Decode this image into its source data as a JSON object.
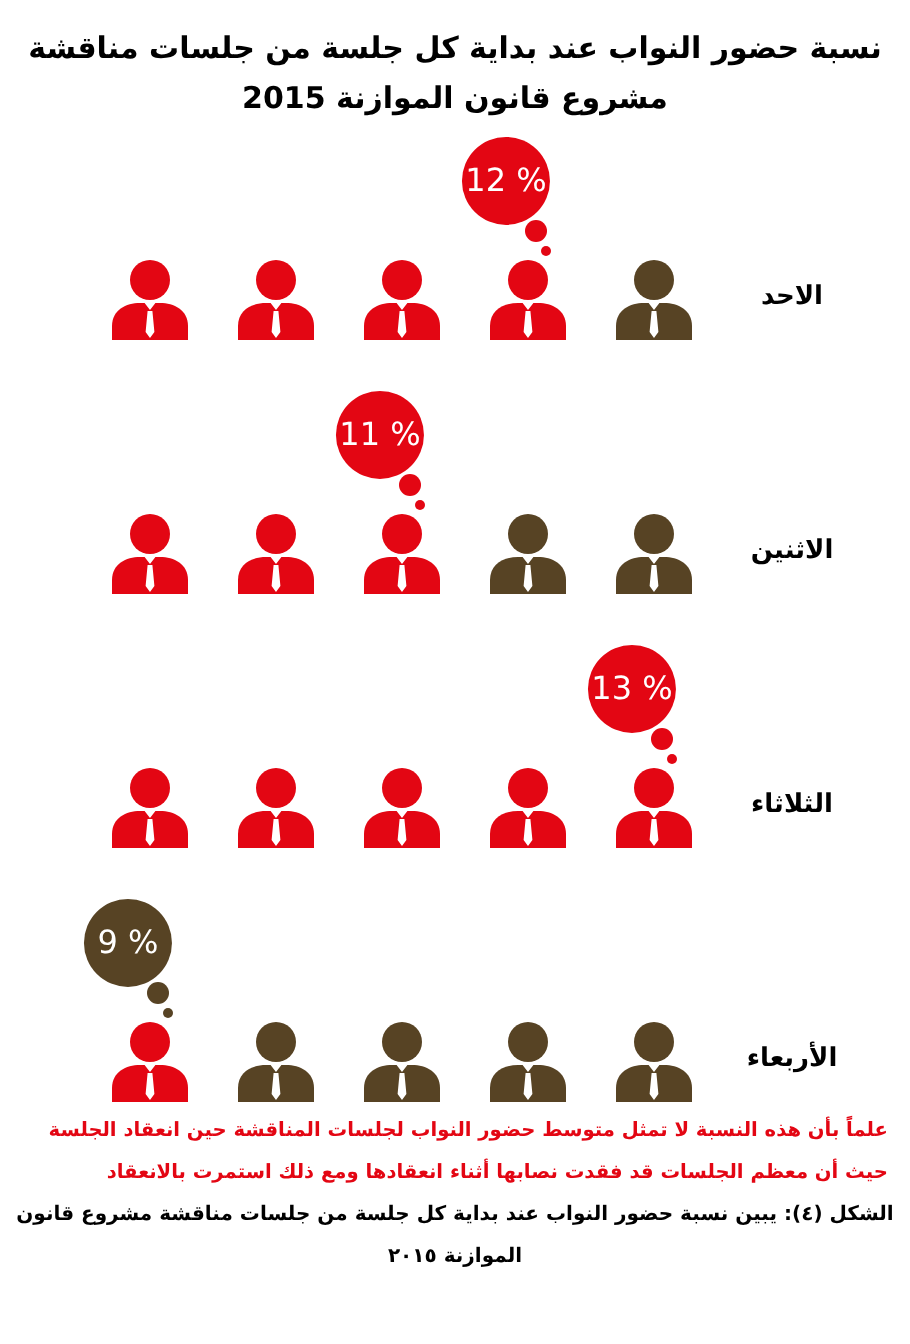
{
  "chart_data": {
    "type": "other",
    "title": "نسبة حضور النواب عند بداية  كل جلسة من جلسات مناقشة مشروع قانون الموازنة 2015",
    "categories": [
      "الاحد",
      "الاثنين",
      "الثلاثاء",
      "الأربعاء"
    ],
    "values": [
      12,
      11,
      13,
      9
    ],
    "value_labels": [
      "12 %",
      "11 %",
      "13 %",
      "9 %"
    ],
    "colors": [
      "#e30613",
      "#e30613",
      "#e30613",
      "#574324"
    ],
    "annotations": [
      "علماً بأن هذه النسبة لا تمثل متوسط حضور النواب لجلسات المناقشة حين انعقاد الجلسة حيث أن معظم الجلسات قد فقدت نصابها أثناء انعقادها ومع ذلك استمرت بالانعقاد",
      "الشكل (٤): يبين نسبة حضور النواب عند بداية  كل جلسة من جلسات مناقشة مشروع قانون الموازنة ٢٠١٥"
    ]
  }
}
